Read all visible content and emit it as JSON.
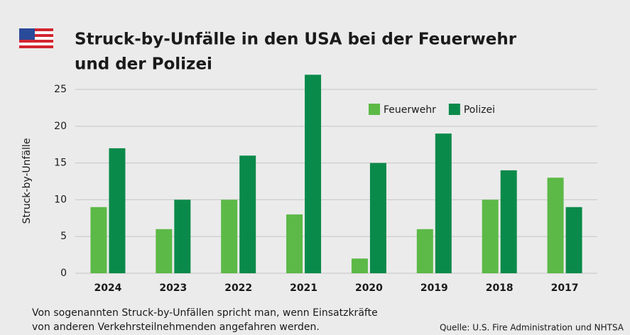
{
  "chart_data": {
    "type": "bar",
    "title_lines": [
      "Struck-by-Unfälle in den USA bei der Feuerwehr",
      "und der Polizei"
    ],
    "ylabel": "Struck-by-Unfälle",
    "categories": [
      "2024",
      "2023",
      "2022",
      "2021",
      "2020",
      "2019",
      "2018",
      "2017"
    ],
    "series": [
      {
        "name": "Feuerwehr",
        "color": "#5cb947",
        "values": [
          9,
          6,
          10,
          8,
          2,
          6,
          10,
          13
        ]
      },
      {
        "name": "Polizei",
        "color": "#0a8a4a",
        "values": [
          17,
          10,
          16,
          27,
          15,
          19,
          14,
          9
        ]
      }
    ],
    "ylim": [
      0,
      27
    ],
    "yticks": [
      0,
      5,
      10,
      15,
      20,
      25
    ],
    "grid": true,
    "legend": "top-right",
    "footnote_lines": [
      "Von sogenannten Struck-by-Unfällen spricht man, wenn Einsatzkräfte",
      "von anderen Verkehrsteilnehmenden angefahren werden."
    ],
    "source": "Quelle: U.S. Fire Administration und NHTSA"
  }
}
